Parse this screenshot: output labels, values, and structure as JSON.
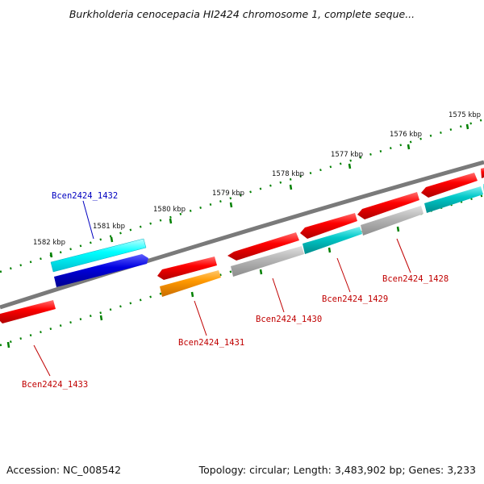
{
  "header": {
    "title": "Burkholderia cenocepacia HI2424 chromosome 1, complete seque..."
  },
  "footer": {
    "accession_label": "Accession:",
    "accession_value": "NC_008542",
    "summary": "Topology: circular; Length: 3,483,902 bp; Genes: 3,233"
  },
  "kbp_labels": [
    "1575 kbp",
    "1576 kbp",
    "1577 kbp",
    "1578 kbp",
    "1579 kbp",
    "1580 kbp",
    "1581 kbp",
    "1582 kbp"
  ],
  "genes": [
    {
      "id": "Bcen2424_1428",
      "color": "#c00000",
      "strand": "reverse"
    },
    {
      "id": "Bcen2424_1429",
      "color": "#c00000",
      "strand": "reverse"
    },
    {
      "id": "Bcen2424_1430",
      "color": "#c00000",
      "strand": "reverse"
    },
    {
      "id": "Bcen2424_1431",
      "color": "#c00000",
      "strand": "reverse"
    },
    {
      "id": "Bcen2424_1432",
      "color": "#0000c0",
      "strand": "forward"
    },
    {
      "id": "Bcen2424_1433",
      "color": "#c00000",
      "strand": "reverse"
    }
  ],
  "colors": {
    "red_gene": "#ff0000",
    "cyan_gene": "#00c8c8",
    "light_cyan_gene": "#00ffff",
    "blue_gene": "#0000e0",
    "gray_gene": "#b4b4b4",
    "orange_gene": "#ff9900",
    "backbone": "#808080",
    "tick": "#008000"
  }
}
